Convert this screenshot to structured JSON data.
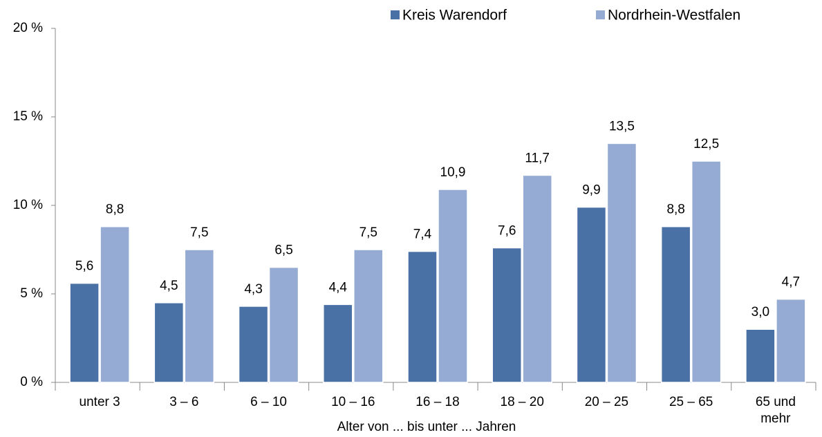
{
  "chart_data": {
    "type": "bar",
    "x_label": "Alter von ... bis unter ... Jahren",
    "categories": [
      "unter 3",
      "3 –  6",
      "6 – 10",
      "10 – 16",
      "16 – 18",
      "18 – 20",
      "20 – 25",
      "25 – 65",
      "65 und mehr"
    ],
    "series": [
      {
        "name": "Kreis Warendorf",
        "color": "#4a71a6",
        "values": [
          5.6,
          4.5,
          4.3,
          4.4,
          7.4,
          7.6,
          9.9,
          8.8,
          3.0
        ],
        "value_labels": [
          "5,6",
          "4,5",
          "4,3",
          "4,4",
          "7,4",
          "7,6",
          "9,9",
          "8,8",
          "3,0"
        ]
      },
      {
        "name": "Nordrhein-Westfalen",
        "color": "#95abd3",
        "values": [
          8.8,
          7.5,
          6.5,
          7.5,
          10.9,
          11.7,
          13.5,
          12.5,
          4.7
        ],
        "value_labels": [
          "8,8",
          "7,5",
          "6,5",
          "7,5",
          "10,9",
          "11,7",
          "13,5",
          "12,5",
          "4,7"
        ]
      }
    ],
    "ylim": [
      0,
      20
    ],
    "yticks": [
      {
        "value": 0,
        "label": "0 %"
      },
      {
        "value": 5,
        "label": "5 %"
      },
      {
        "value": 10,
        "label": "10 %"
      },
      {
        "value": 15,
        "label": "15 %"
      },
      {
        "value": 20,
        "label": "20 %"
      }
    ],
    "grid": false,
    "legend": "top"
  }
}
